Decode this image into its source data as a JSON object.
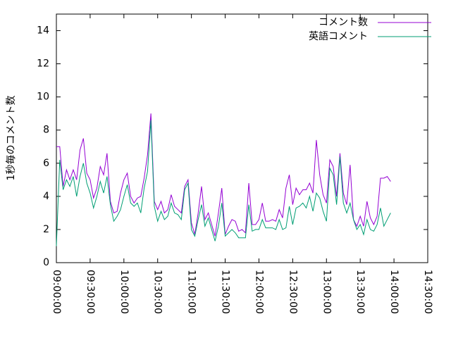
{
  "chart_data": {
    "type": "line",
    "y_label": "1秒毎のコメント数",
    "x": [
      "09:00:00",
      "09:03:00",
      "09:06:00",
      "09:09:00",
      "09:12:00",
      "09:15:00",
      "09:18:00",
      "09:21:00",
      "09:24:00",
      "09:27:00",
      "09:30:00",
      "09:33:00",
      "09:36:00",
      "09:39:00",
      "09:42:00",
      "09:45:00",
      "09:48:00",
      "09:51:00",
      "09:54:00",
      "09:57:00",
      "10:00:00",
      "10:03:00",
      "10:06:00",
      "10:09:00",
      "10:12:00",
      "10:15:00",
      "10:18:00",
      "10:21:00",
      "10:24:00",
      "10:27:00",
      "10:30:00",
      "10:33:00",
      "10:36:00",
      "10:39:00",
      "10:42:00",
      "10:45:00",
      "10:48:00",
      "10:51:00",
      "10:54:00",
      "10:57:00",
      "11:00:00",
      "11:03:00",
      "11:06:00",
      "11:09:00",
      "11:12:00",
      "11:15:00",
      "11:18:00",
      "11:21:00",
      "11:24:00",
      "11:27:00",
      "11:30:00",
      "11:33:00",
      "11:36:00",
      "11:39:00",
      "11:42:00",
      "11:45:00",
      "11:48:00",
      "11:51:00",
      "11:54:00",
      "11:57:00",
      "12:00:00",
      "12:03:00",
      "12:06:00",
      "12:09:00",
      "12:12:00",
      "12:15:00",
      "12:18:00",
      "12:21:00",
      "12:24:00",
      "12:27:00",
      "12:30:00",
      "12:33:00",
      "12:36:00",
      "12:39:00",
      "12:42:00",
      "12:45:00",
      "12:48:00",
      "12:51:00",
      "12:54:00",
      "12:57:00",
      "13:00:00",
      "13:03:00",
      "13:06:00",
      "13:09:00",
      "13:12:00",
      "13:15:00",
      "13:18:00",
      "13:21:00",
      "13:24:00",
      "13:27:00",
      "13:30:00",
      "13:33:00",
      "13:36:00",
      "13:39:00",
      "13:42:00",
      "13:45:00",
      "13:48:00",
      "13:51:00",
      "13:54:00",
      "13:57:00"
    ],
    "series": [
      {
        "name": "コメント数",
        "color": "#9400d3",
        "values": [
          7.0,
          7.0,
          4.6,
          5.6,
          5.0,
          5.6,
          5.0,
          6.8,
          7.5,
          5.4,
          5.0,
          3.9,
          4.5,
          5.8,
          5.3,
          6.6,
          3.7,
          3.0,
          3.1,
          4.2,
          5.0,
          5.4,
          4.0,
          3.6,
          3.9,
          4.0,
          5.1,
          6.5,
          9.0,
          3.7,
          3.2,
          3.7,
          3.0,
          3.2,
          4.1,
          3.4,
          3.2,
          3.0,
          4.6,
          5.0,
          2.4,
          1.7,
          3.0,
          4.6,
          2.6,
          3.0,
          2.3,
          1.6,
          3.0,
          4.5,
          1.7,
          2.2,
          2.6,
          2.5,
          1.9,
          2.0,
          1.8,
          4.8,
          2.3,
          2.3,
          2.6,
          3.6,
          2.5,
          2.5,
          2.6,
          2.5,
          3.2,
          2.7,
          4.5,
          5.3,
          3.5,
          4.5,
          4.1,
          4.4,
          4.4,
          4.8,
          4.2,
          7.4,
          5.3,
          4.1,
          3.6,
          6.2,
          5.8,
          4.0,
          6.6,
          4.2,
          3.5,
          5.9,
          2.6,
          2.2,
          2.8,
          2.2,
          3.7,
          2.7,
          2.3,
          2.8,
          5.1,
          5.1,
          5.2,
          4.9
        ]
      },
      {
        "name": "英語コメント",
        "color": "#009e73",
        "values": [
          1.0,
          6.2,
          4.4,
          5.0,
          4.6,
          5.2,
          4.0,
          5.2,
          6.0,
          4.8,
          4.2,
          3.3,
          4.0,
          4.9,
          4.2,
          5.2,
          3.5,
          2.5,
          2.8,
          3.2,
          4.0,
          4.7,
          3.6,
          3.4,
          3.6,
          3.0,
          4.5,
          5.5,
          8.6,
          3.4,
          2.5,
          3.1,
          2.6,
          2.8,
          3.6,
          3.0,
          2.9,
          2.6,
          4.4,
          4.8,
          2.0,
          1.6,
          2.6,
          3.5,
          2.2,
          2.7,
          2.0,
          1.3,
          2.2,
          3.6,
          1.6,
          1.8,
          2.0,
          1.8,
          1.5,
          1.5,
          1.5,
          3.5,
          1.9,
          2.0,
          2.0,
          2.6,
          2.1,
          2.1,
          2.1,
          2.0,
          2.6,
          2.0,
          2.1,
          3.4,
          2.3,
          3.3,
          3.4,
          3.6,
          3.3,
          4.0,
          3.1,
          4.2,
          3.9,
          3.1,
          2.5,
          5.7,
          5.3,
          3.5,
          6.4,
          3.6,
          3.0,
          3.6,
          2.6,
          2.0,
          2.3,
          1.7,
          2.6,
          2.0,
          1.9,
          2.3,
          3.3,
          2.2,
          2.6,
          3.0
        ]
      }
    ],
    "xlim": [
      "09:00:00",
      "14:30:00"
    ],
    "xticks": [
      "09:00:00",
      "09:30:00",
      "10:00:00",
      "10:30:00",
      "11:00:00",
      "11:30:00",
      "12:00:00",
      "12:30:00",
      "13:00:00",
      "13:30:00",
      "14:00:00",
      "14:30:00"
    ],
    "ylim": [
      0,
      15
    ],
    "yticks": [
      0,
      2,
      4,
      6,
      8,
      10,
      12,
      14
    ],
    "legend": "top-right"
  }
}
